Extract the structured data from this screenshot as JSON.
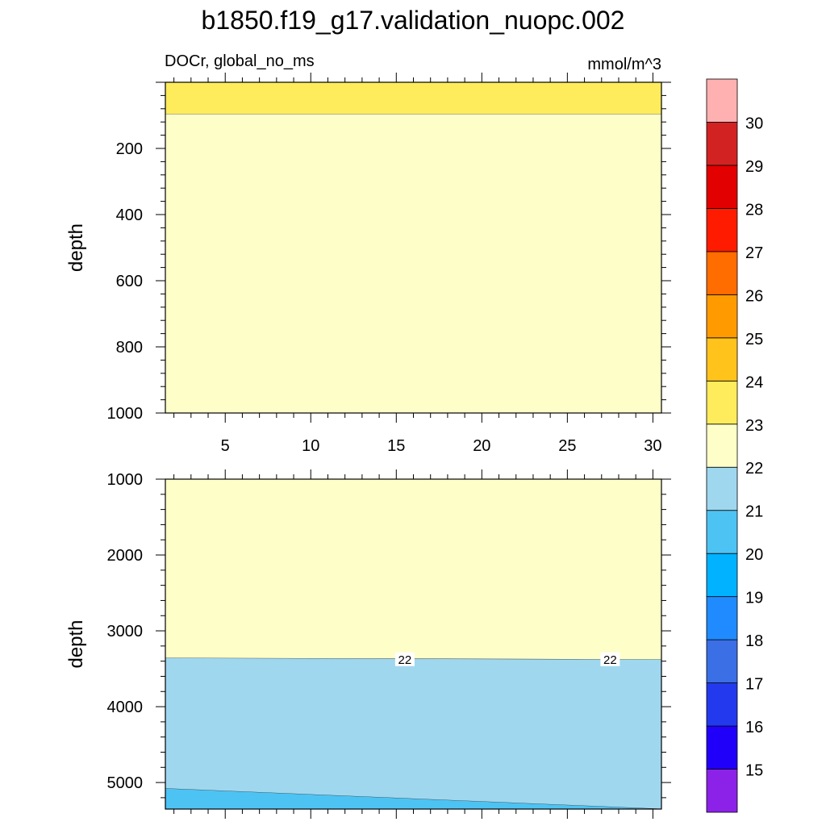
{
  "chart_data": {
    "type": "heatmap",
    "title": "b1850.f19_g17.validation_nuopc.002",
    "subtitle_left": "DOCr, global_no_ms",
    "subtitle_right": "mmol/m^3",
    "ylabel": "depth",
    "x_range": [
      1.5,
      30.5
    ],
    "x_ticks": [
      "5",
      "10",
      "15",
      "20",
      "25",
      "30"
    ],
    "x_tick_values": [
      5,
      10,
      15,
      20,
      25,
      30
    ],
    "panels": [
      {
        "name": "upper",
        "ylim": [
          0,
          1000
        ],
        "y_ticks": [
          "200",
          "400",
          "600",
          "800",
          "1000"
        ],
        "y_tick_values": [
          200,
          400,
          600,
          800,
          1000
        ],
        "regions": [
          {
            "level": "23-24",
            "color": "#FFEC5C",
            "top_depth": [
              0,
              0
            ],
            "bottom_depth": [
              96,
              96
            ]
          },
          {
            "level": "22-23",
            "color": "#FEFFC8",
            "top_depth": [
              96,
              96
            ],
            "bottom_depth": [
              1000,
              1000
            ]
          }
        ]
      },
      {
        "name": "lower",
        "ylim": [
          1000,
          5350
        ],
        "y_ticks": [
          "1000",
          "2000",
          "3000",
          "4000",
          "5000"
        ],
        "y_tick_values": [
          1000,
          2000,
          3000,
          4000,
          5000
        ],
        "contour_labels": [
          {
            "text": "22",
            "x": 15.5,
            "depth": 3380
          },
          {
            "text": "22",
            "x": 27.5,
            "depth": 3380
          }
        ],
        "regions": [
          {
            "level": "22-23",
            "color": "#FEFFC8",
            "top_depth": [
              1000,
              1000
            ],
            "bottom_depth": [
              3360,
              3380
            ]
          },
          {
            "level": "21-22",
            "color": "#9FD7EF",
            "top_depth": [
              3360,
              3380
            ],
            "bottom_depth": [
              5080,
              5350
            ]
          },
          {
            "level": "20-21",
            "color": "#4DC3F3",
            "top_depth": [
              5080,
              5350
            ],
            "bottom_depth": [
              5350,
              5350
            ]
          }
        ]
      }
    ],
    "colorbar": {
      "labels": [
        "15",
        "16",
        "17",
        "18",
        "19",
        "20",
        "21",
        "22",
        "23",
        "24",
        "25",
        "26",
        "27",
        "28",
        "29",
        "30"
      ],
      "colors": [
        "#8C22E8",
        "#2100FA",
        "#2339EE",
        "#3A6FE6",
        "#1F8BFE",
        "#00B2FF",
        "#4DC3F3",
        "#9FD7EF",
        "#FEFFC8",
        "#FFEC5C",
        "#FFC31C",
        "#FF9B00",
        "#FF6C00",
        "#FF1B00",
        "#E30000",
        "#D32222",
        "#FFB1B1"
      ]
    }
  }
}
